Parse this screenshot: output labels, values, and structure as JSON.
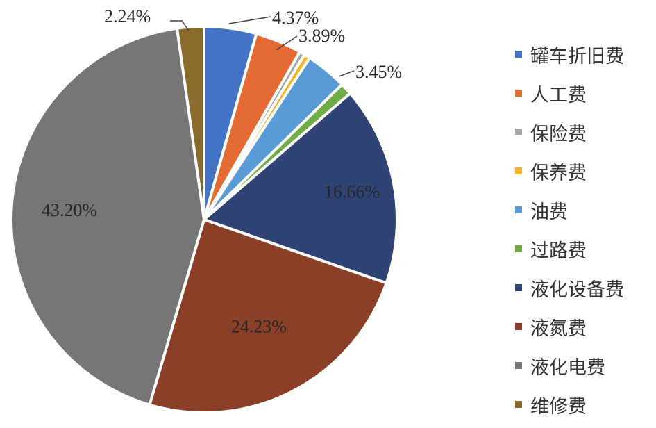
{
  "chart_data": {
    "type": "pie",
    "categories": [
      "罐车折旧费",
      "人工费",
      "保险费",
      "保养费",
      "油费",
      "过路费",
      "液化设备费",
      "液氮费",
      "液化电费",
      "维修费"
    ],
    "values": [
      4.37,
      3.89,
      0.45,
      0.51,
      3.45,
      1.0,
      16.66,
      24.23,
      43.2,
      2.24
    ],
    "data_labels": [
      "4.37%",
      "3.89%",
      "",
      "",
      "3.45%",
      "",
      "16.66%",
      "24.23%",
      "43.20%",
      "2.24%"
    ],
    "colors": [
      "#4472C4",
      "#E46C34",
      "#A5A5A5",
      "#F5B324",
      "#5B9BD5",
      "#70AD47",
      "#2F4475",
      "#8B3F26",
      "#777575",
      "#8A6A2B"
    ],
    "legend_position": "right",
    "start_angle_deg": 0,
    "direction": "clockwise"
  }
}
